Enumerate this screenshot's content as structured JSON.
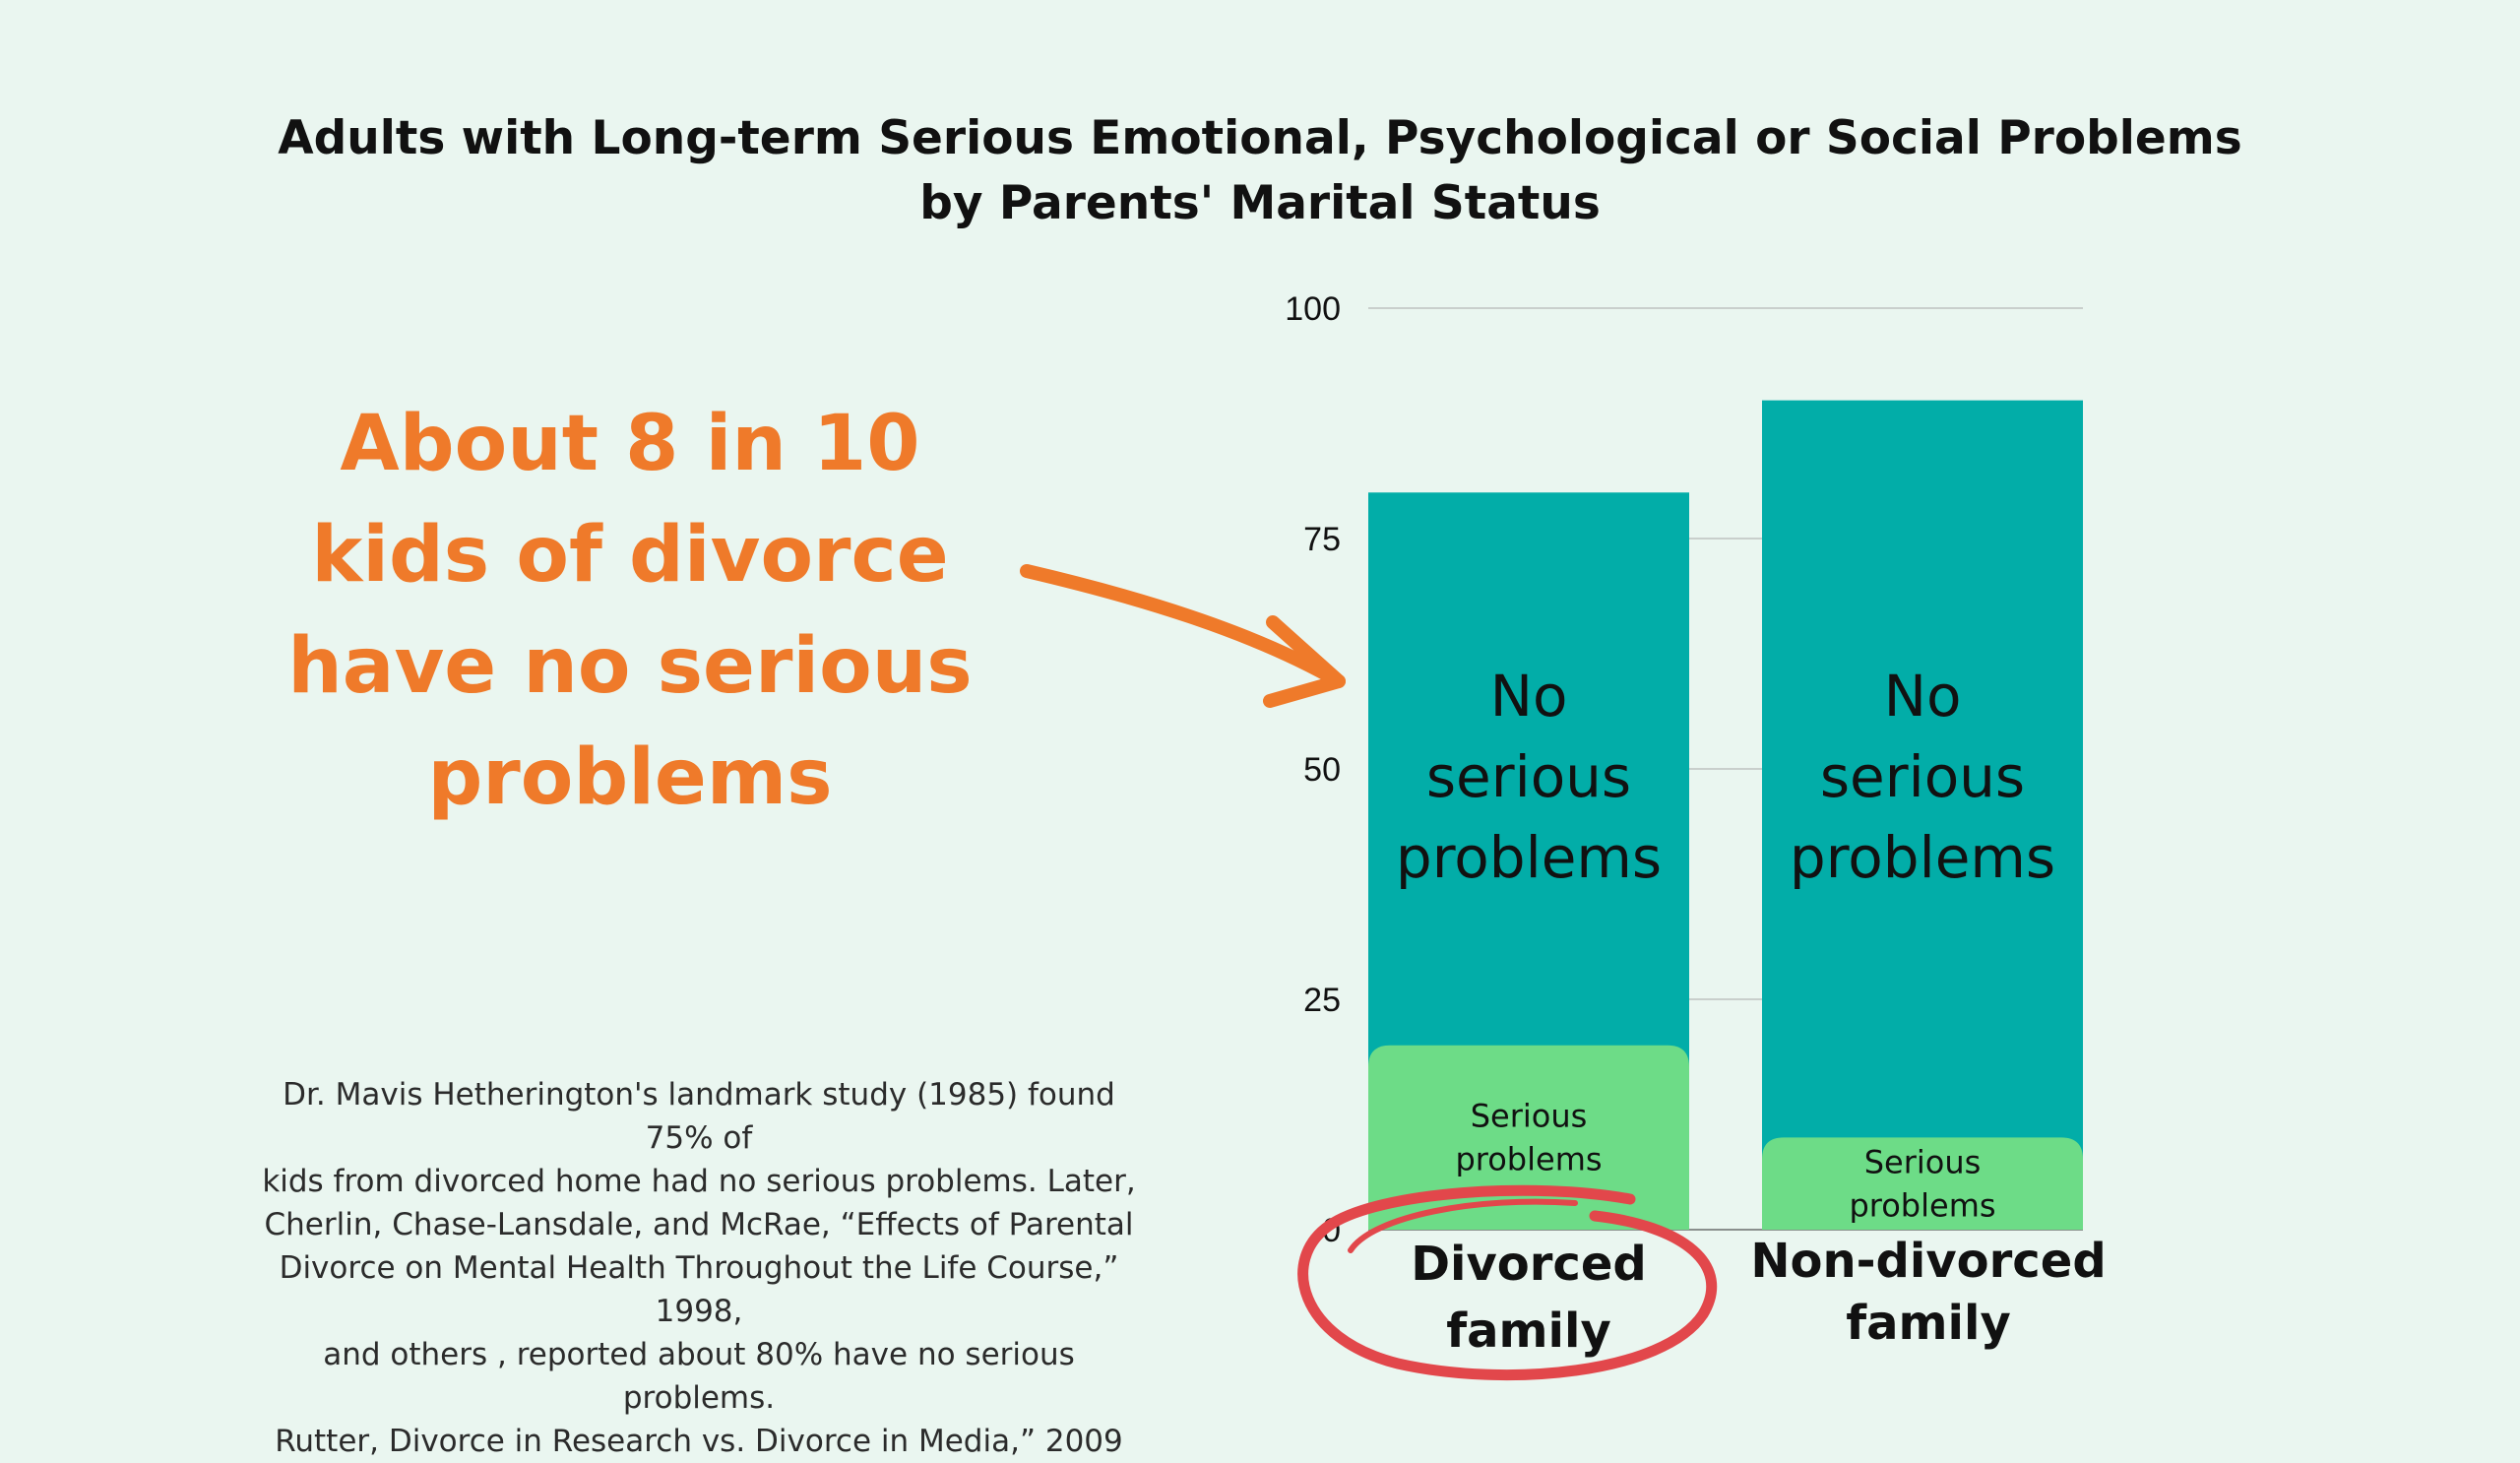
{
  "title_lines": [
    "Adults with Long-term Serious Emotional, Psychological or Social Problems",
    "by Parents' Marital Status"
  ],
  "callout_lines": [
    "About 8 in 10",
    "kids of divorce",
    "have no serious",
    "problems"
  ],
  "citation_lines": [
    "Dr. Mavis Hetherington's landmark study (1985) found 75% of",
    "kids from divorced home had no serious problems. Later,",
    "Cherlin, Chase-Lansdale, and McRae, “Effects of Parental",
    "Divorce on Mental Health Throughout the Life Course,” 1998,",
    "and others , reported about 80% have no serious problems.",
    "Rutter, Divorce in Research vs. Divorce in Media,” 2009"
  ],
  "colors": {
    "accent": "#ef7a2a",
    "circle": "#e2474b",
    "no_problems": "#02ada8",
    "serious": "#6ddc87",
    "background": "#eaf6f0"
  },
  "chart_data": {
    "type": "bar",
    "stacked": true,
    "categories": [
      [
        "Divorced",
        "family"
      ],
      [
        "Non-divorced",
        "family"
      ]
    ],
    "series": [
      {
        "name": "No serious problems",
        "label_lines": [
          "No",
          "serious",
          "problems"
        ],
        "values": [
          80,
          90
        ]
      },
      {
        "name": "Serious problems",
        "label_lines": [
          "Serious",
          "problems"
        ],
        "values": [
          20,
          10
        ]
      }
    ],
    "yticks": [
      0,
      25,
      50,
      75,
      100
    ],
    "ylim": [
      0,
      100
    ],
    "grid": true,
    "highlighted_category": 0
  }
}
